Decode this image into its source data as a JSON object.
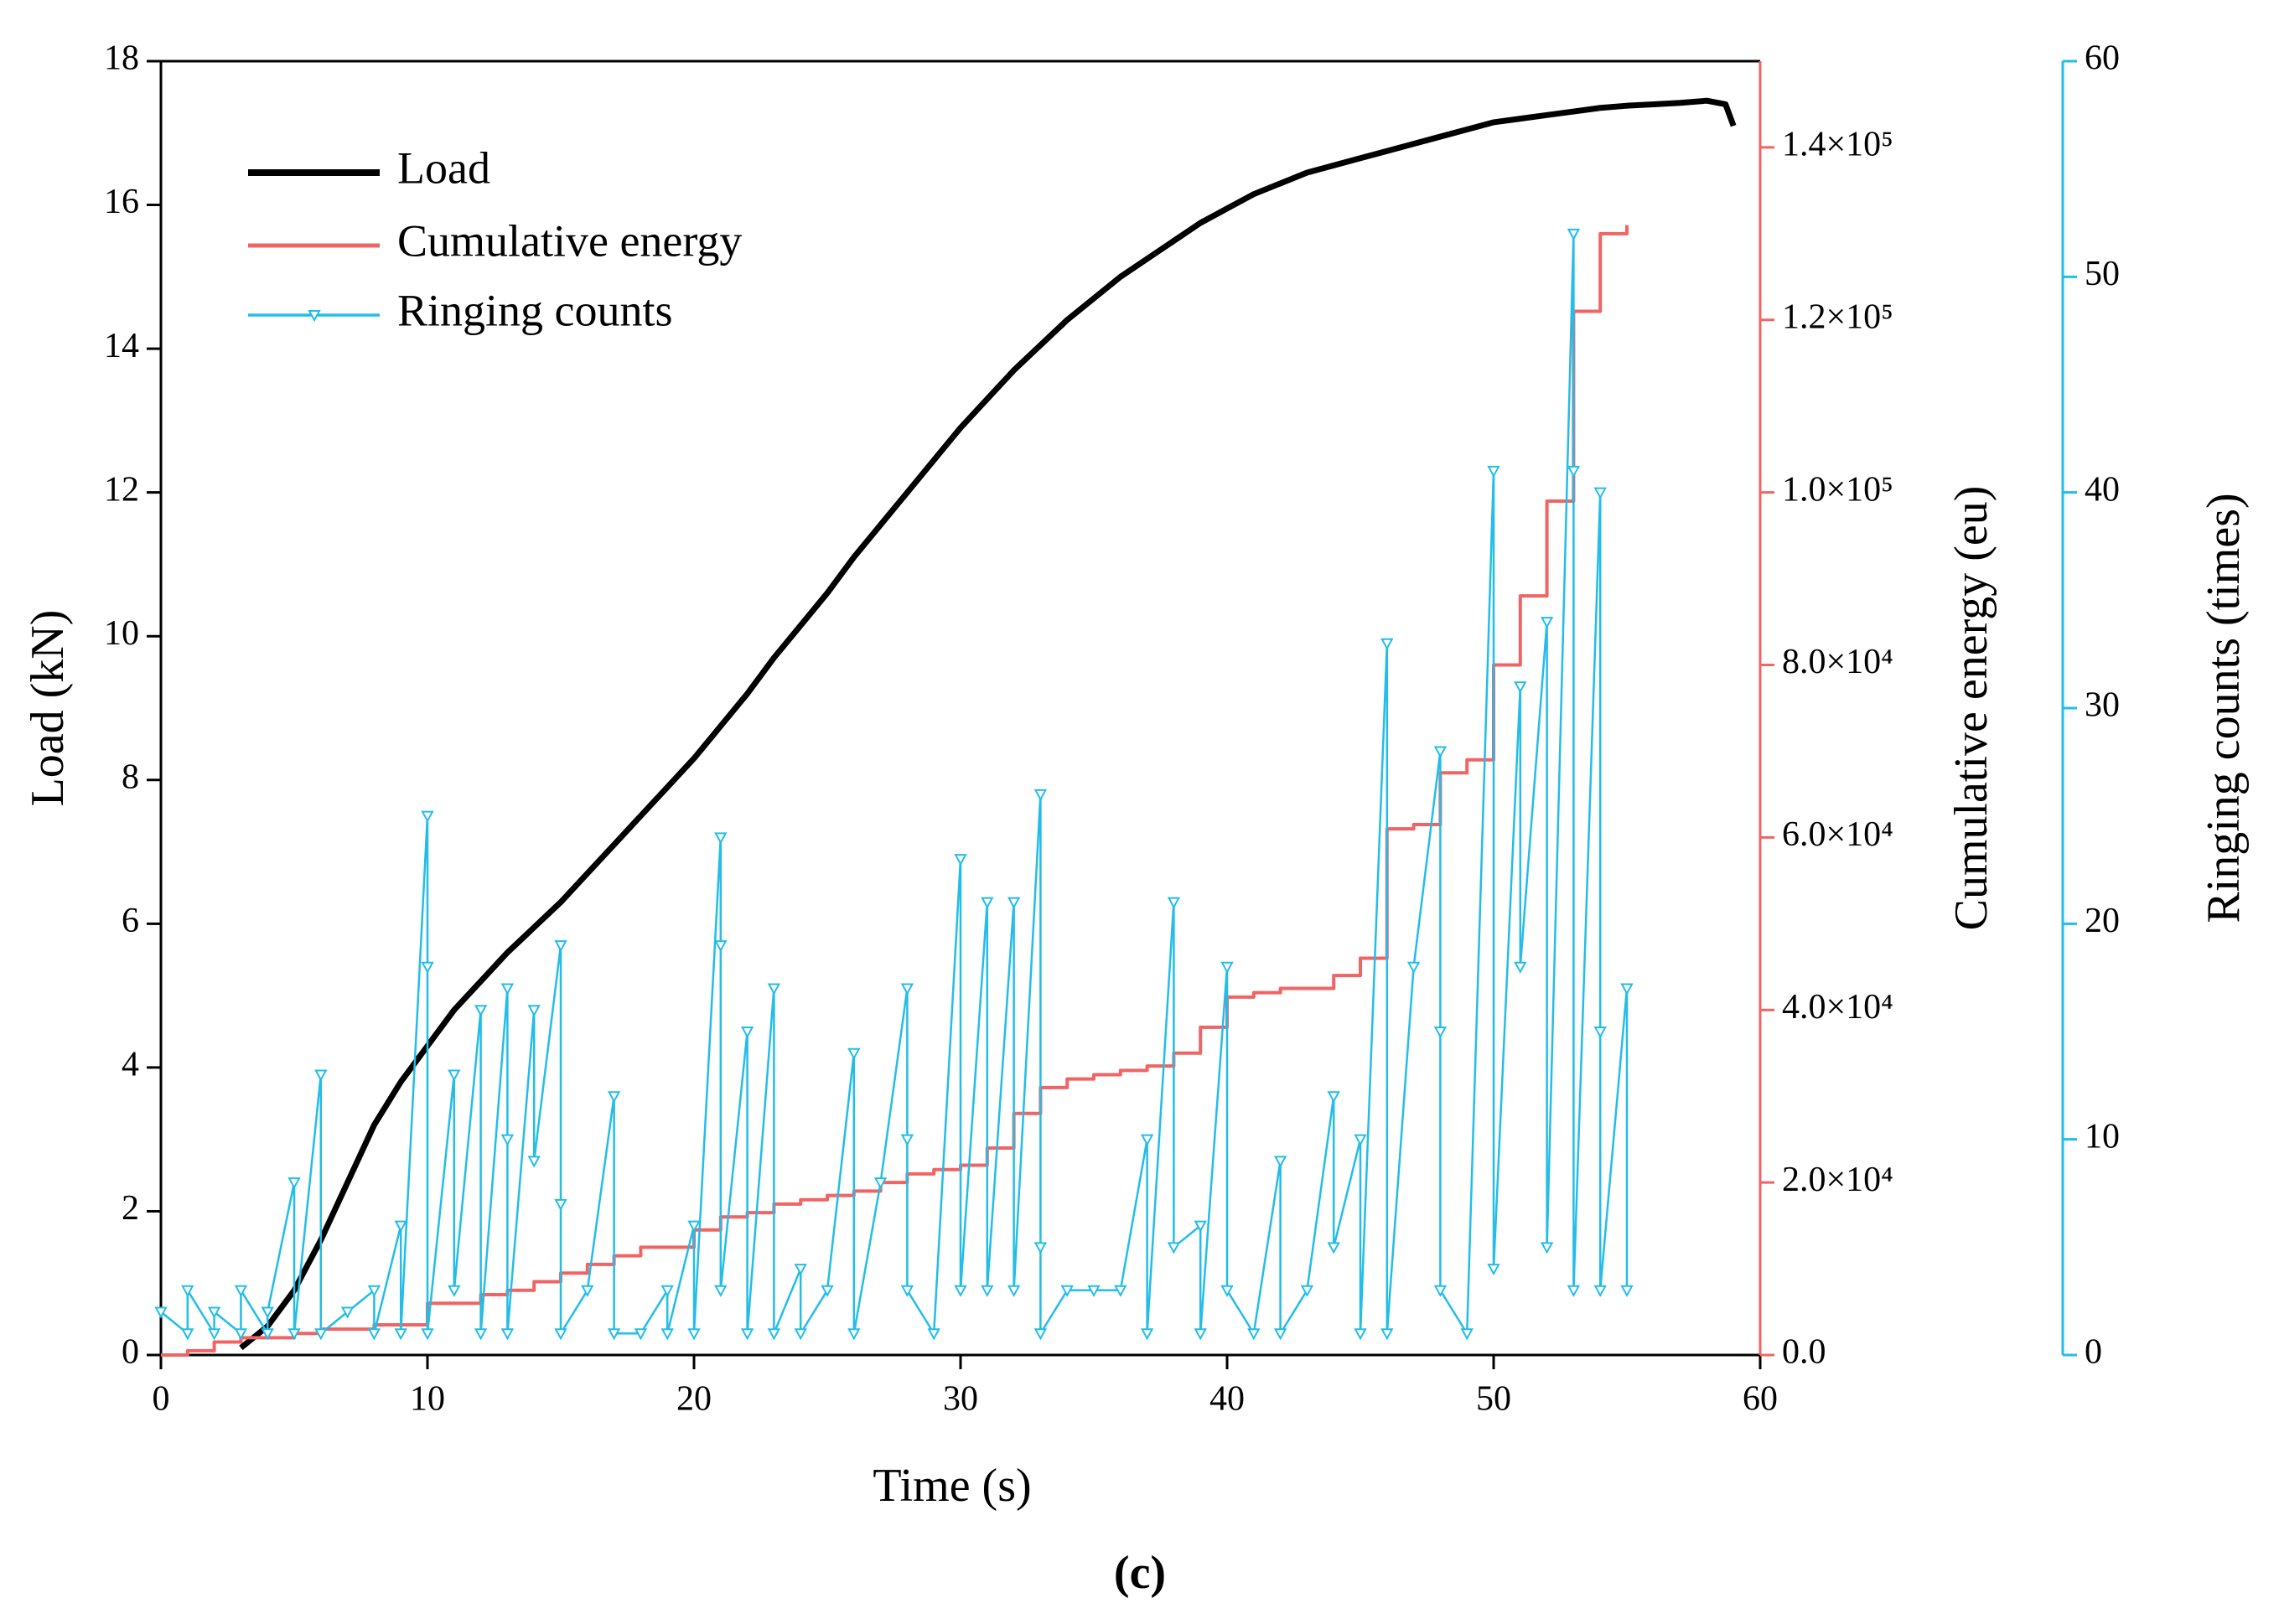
{
  "chart_data": {
    "type": "line",
    "caption": "(c)",
    "xlabel": "Time (s)",
    "ylabel": "Load (kN)",
    "y2label": "Cumulative energy (eu)",
    "y3label": "Ringing counts (times)",
    "xlim": [
      0,
      60
    ],
    "xticks": [
      0,
      10,
      20,
      30,
      40,
      50,
      60
    ],
    "ylim": [
      0,
      18
    ],
    "yticks": [
      0,
      2,
      4,
      6,
      8,
      10,
      12,
      14,
      16,
      18
    ],
    "y2lim": [
      0,
      150000
    ],
    "y2ticks": [
      {
        "value": 0,
        "label": "0.0"
      },
      {
        "value": 20000,
        "label": "2.0×10⁴"
      },
      {
        "value": 40000,
        "label": "4.0×10⁴"
      },
      {
        "value": 60000,
        "label": "6.0×10⁴"
      },
      {
        "value": 80000,
        "label": "8.0×10⁴"
      },
      {
        "value": 100000,
        "label": "1.0×10⁵"
      },
      {
        "value": 120000,
        "label": "1.2×10⁵"
      },
      {
        "value": 140000,
        "label": "1.4×10⁵"
      }
    ],
    "y3lim": [
      0,
      60
    ],
    "y3ticks": [
      0,
      10,
      20,
      30,
      40,
      50,
      60
    ],
    "y2color": "#f06464",
    "y3color": "#22bde8",
    "legend": "upper left",
    "series": [
      {
        "name": "Load",
        "color": "#000000",
        "axis": "y",
        "x": [
          3,
          4,
          5,
          6,
          7,
          8,
          9,
          10,
          11,
          12,
          13,
          14,
          15,
          16,
          17,
          18,
          19,
          20,
          21,
          22,
          23,
          24,
          25,
          26,
          27,
          28,
          29,
          30,
          31,
          32,
          33,
          34,
          35,
          36,
          37,
          38,
          39,
          40,
          41,
          42,
          43,
          44,
          45,
          46,
          47,
          48,
          49,
          50,
          51,
          52,
          53,
          54,
          55,
          56,
          57,
          58,
          58.7,
          59
        ],
        "values": [
          0.1,
          0.4,
          0.9,
          1.6,
          2.4,
          3.2,
          3.8,
          4.3,
          4.8,
          5.2,
          5.6,
          5.95,
          6.3,
          6.7,
          7.1,
          7.5,
          7.9,
          8.3,
          8.75,
          9.2,
          9.7,
          10.15,
          10.6,
          11.1,
          11.55,
          12.0,
          12.45,
          12.9,
          13.3,
          13.7,
          14.05,
          14.4,
          14.7,
          15.0,
          15.25,
          15.5,
          15.75,
          15.95,
          16.15,
          16.3,
          16.45,
          16.55,
          16.65,
          16.75,
          16.85,
          16.95,
          17.05,
          17.15,
          17.2,
          17.25,
          17.3,
          17.35,
          17.38,
          17.4,
          17.42,
          17.45,
          17.4,
          17.1
        ]
      },
      {
        "name": "Cumulative energy",
        "color": "#f06464",
        "axis": "y2",
        "step": "post",
        "x": [
          0,
          1,
          2,
          3,
          5,
          6,
          8,
          10,
          12,
          13,
          14,
          15,
          16,
          17,
          18,
          20,
          21,
          22,
          23,
          24,
          25,
          26,
          27,
          28,
          29,
          30,
          31,
          32,
          33,
          34,
          35,
          36,
          37,
          38,
          39,
          40,
          41,
          42,
          44,
          45,
          46,
          47,
          48,
          49,
          50,
          51,
          52,
          53,
          54,
          55
        ],
        "values": [
          0,
          500,
          1500,
          2000,
          2500,
          3000,
          3500,
          6000,
          7000,
          7500,
          8500,
          9500,
          10500,
          11500,
          12500,
          14500,
          16000,
          16500,
          17500,
          18000,
          18500,
          19000,
          20000,
          21000,
          21500,
          22000,
          24000,
          28000,
          31000,
          32000,
          32500,
          33000,
          33500,
          35000,
          38000,
          41500,
          42000,
          42500,
          44000,
          46000,
          61000,
          61500,
          67500,
          69000,
          80000,
          88000,
          99000,
          121000,
          130000,
          131000
        ]
      },
      {
        "name": "Ringing counts",
        "color": "#22bde8",
        "axis": "y3",
        "marker": "triangle-down",
        "x": [
          0,
          1,
          1,
          2,
          2,
          3,
          3,
          4,
          4,
          5,
          5,
          6,
          6,
          7,
          8,
          8,
          9,
          9,
          10,
          10,
          10,
          11,
          11,
          12,
          12,
          13,
          13,
          13,
          14,
          14,
          15,
          15,
          15,
          16,
          17,
          17,
          18,
          19,
          19,
          20,
          20,
          21,
          21,
          21,
          22,
          22,
          23,
          23,
          24,
          24,
          25,
          26,
          26,
          27,
          28,
          28,
          28,
          29,
          30,
          30,
          31,
          31,
          32,
          32,
          33,
          33,
          33,
          34,
          35,
          36,
          37,
          37,
          38,
          38,
          39,
          39,
          40,
          40,
          41,
          42,
          42,
          43,
          44,
          44,
          45,
          45,
          46,
          46,
          47,
          48,
          48,
          48,
          49,
          50,
          50,
          51,
          51,
          52,
          52,
          53,
          53,
          53,
          54,
          54,
          54,
          55,
          55
        ],
        "values": [
          2,
          1,
          3,
          1,
          2,
          1,
          3,
          1,
          2,
          8,
          1,
          13,
          1,
          2,
          3,
          1,
          6,
          1,
          25,
          18,
          1,
          13,
          3,
          16,
          1,
          17,
          10,
          1,
          16,
          9,
          19,
          7,
          1,
          3,
          12,
          1,
          1,
          3,
          1,
          6,
          1,
          24,
          19,
          3,
          15,
          1,
          17,
          1,
          4,
          1,
          3,
          14,
          1,
          8,
          17,
          10,
          3,
          1,
          23,
          3,
          21,
          3,
          21,
          3,
          26,
          5,
          1,
          3,
          3,
          3,
          10,
          1,
          21,
          5,
          6,
          1,
          18,
          3,
          1,
          9,
          1,
          3,
          12,
          5,
          10,
          1,
          33,
          1,
          18,
          28,
          15,
          3,
          1,
          41,
          4,
          31,
          18,
          34,
          5,
          52,
          41,
          3,
          40,
          15,
          3,
          17,
          3
        ]
      }
    ]
  }
}
